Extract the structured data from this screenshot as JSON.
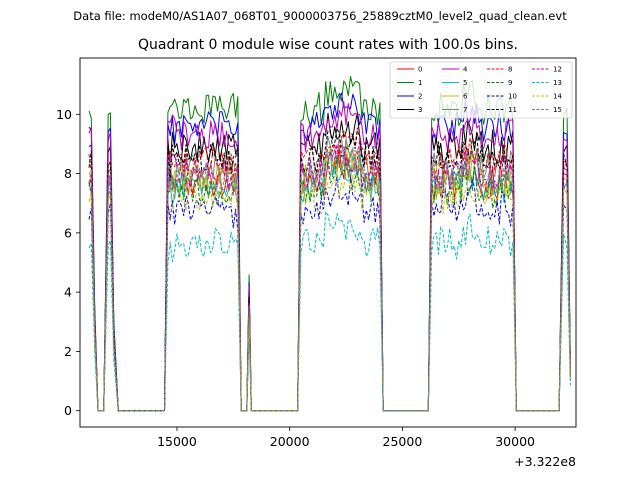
{
  "chart_data": {
    "type": "line",
    "suptitle": "Data file: modeM0/AS1A07_068T01_9000003756_25889cztM0_level2_quad_clean.evt",
    "title": "Quadrant 0 module wise count rates with 100.0s bins.",
    "xlabel": "",
    "ylabel": "",
    "x_offset_label": "+3.322e8",
    "xlim": [
      10700,
      32700
    ],
    "ylim": [
      -0.55,
      11.9
    ],
    "x_ticks": [
      15000,
      20000,
      25000,
      30000
    ],
    "x_tick_labels": [
      "15000",
      "20000",
      "25000",
      "30000"
    ],
    "y_ticks": [
      0,
      2,
      4,
      6,
      8,
      10
    ],
    "y_tick_labels": [
      "0",
      "2",
      "4",
      "6",
      "8",
      "10"
    ],
    "segments": [
      {
        "x_start": 11200,
        "x_end": 11300,
        "kind": "on_drop"
      },
      {
        "x_start": 11900,
        "x_end": 12100,
        "kind": "spike"
      },
      {
        "x_start": 14600,
        "x_end": 17700,
        "kind": "on"
      },
      {
        "x_start": 18200,
        "x_end": 18200,
        "kind": "spike_small"
      },
      {
        "x_start": 20500,
        "x_end": 24000,
        "kind": "on"
      },
      {
        "x_start": 26300,
        "x_end": 29900,
        "kind": "on"
      },
      {
        "x_start": 32100,
        "x_end": 32400,
        "kind": "on_short"
      }
    ],
    "series": [
      {
        "name": "0",
        "color": "#ff0000",
        "dash": "solid",
        "level": 7.7
      },
      {
        "name": "1",
        "color": "#008000",
        "dash": "solid",
        "level": 10.2
      },
      {
        "name": "2",
        "color": "#0000ff",
        "dash": "solid",
        "level": 9.6
      },
      {
        "name": "3",
        "color": "#000000",
        "dash": "solid",
        "level": 8.9
      },
      {
        "name": "4",
        "color": "#bf00bf",
        "dash": "solid",
        "level": 9.3
      },
      {
        "name": "5",
        "color": "#00bfbf",
        "dash": "solid",
        "level": 7.6
      },
      {
        "name": "6",
        "color": "#bfbf00",
        "dash": "solid",
        "level": 7.9
      },
      {
        "name": "7",
        "color": "#808080",
        "dash": "solid",
        "level": 8.2
      },
      {
        "name": "8",
        "color": "#ff0000",
        "dash": "dashed",
        "level": 8.4
      },
      {
        "name": "9",
        "color": "#008000",
        "dash": "dashed",
        "level": 7.4
      },
      {
        "name": "10",
        "color": "#0000ff",
        "dash": "dashed",
        "level": 6.8
      },
      {
        "name": "11",
        "color": "#000000",
        "dash": "dashed",
        "level": 8.5
      },
      {
        "name": "12",
        "color": "#bf00bf",
        "dash": "dashed",
        "level": 8.0
      },
      {
        "name": "13",
        "color": "#00bfbf",
        "dash": "dashed",
        "level": 5.7
      },
      {
        "name": "14",
        "color": "#bfbf00",
        "dash": "dashed",
        "level": 7.2
      },
      {
        "name": "15",
        "color": "#808080",
        "dash": "dashed",
        "level": 7.8
      }
    ],
    "legend_position": "top-right",
    "legend_columns": 4
  }
}
